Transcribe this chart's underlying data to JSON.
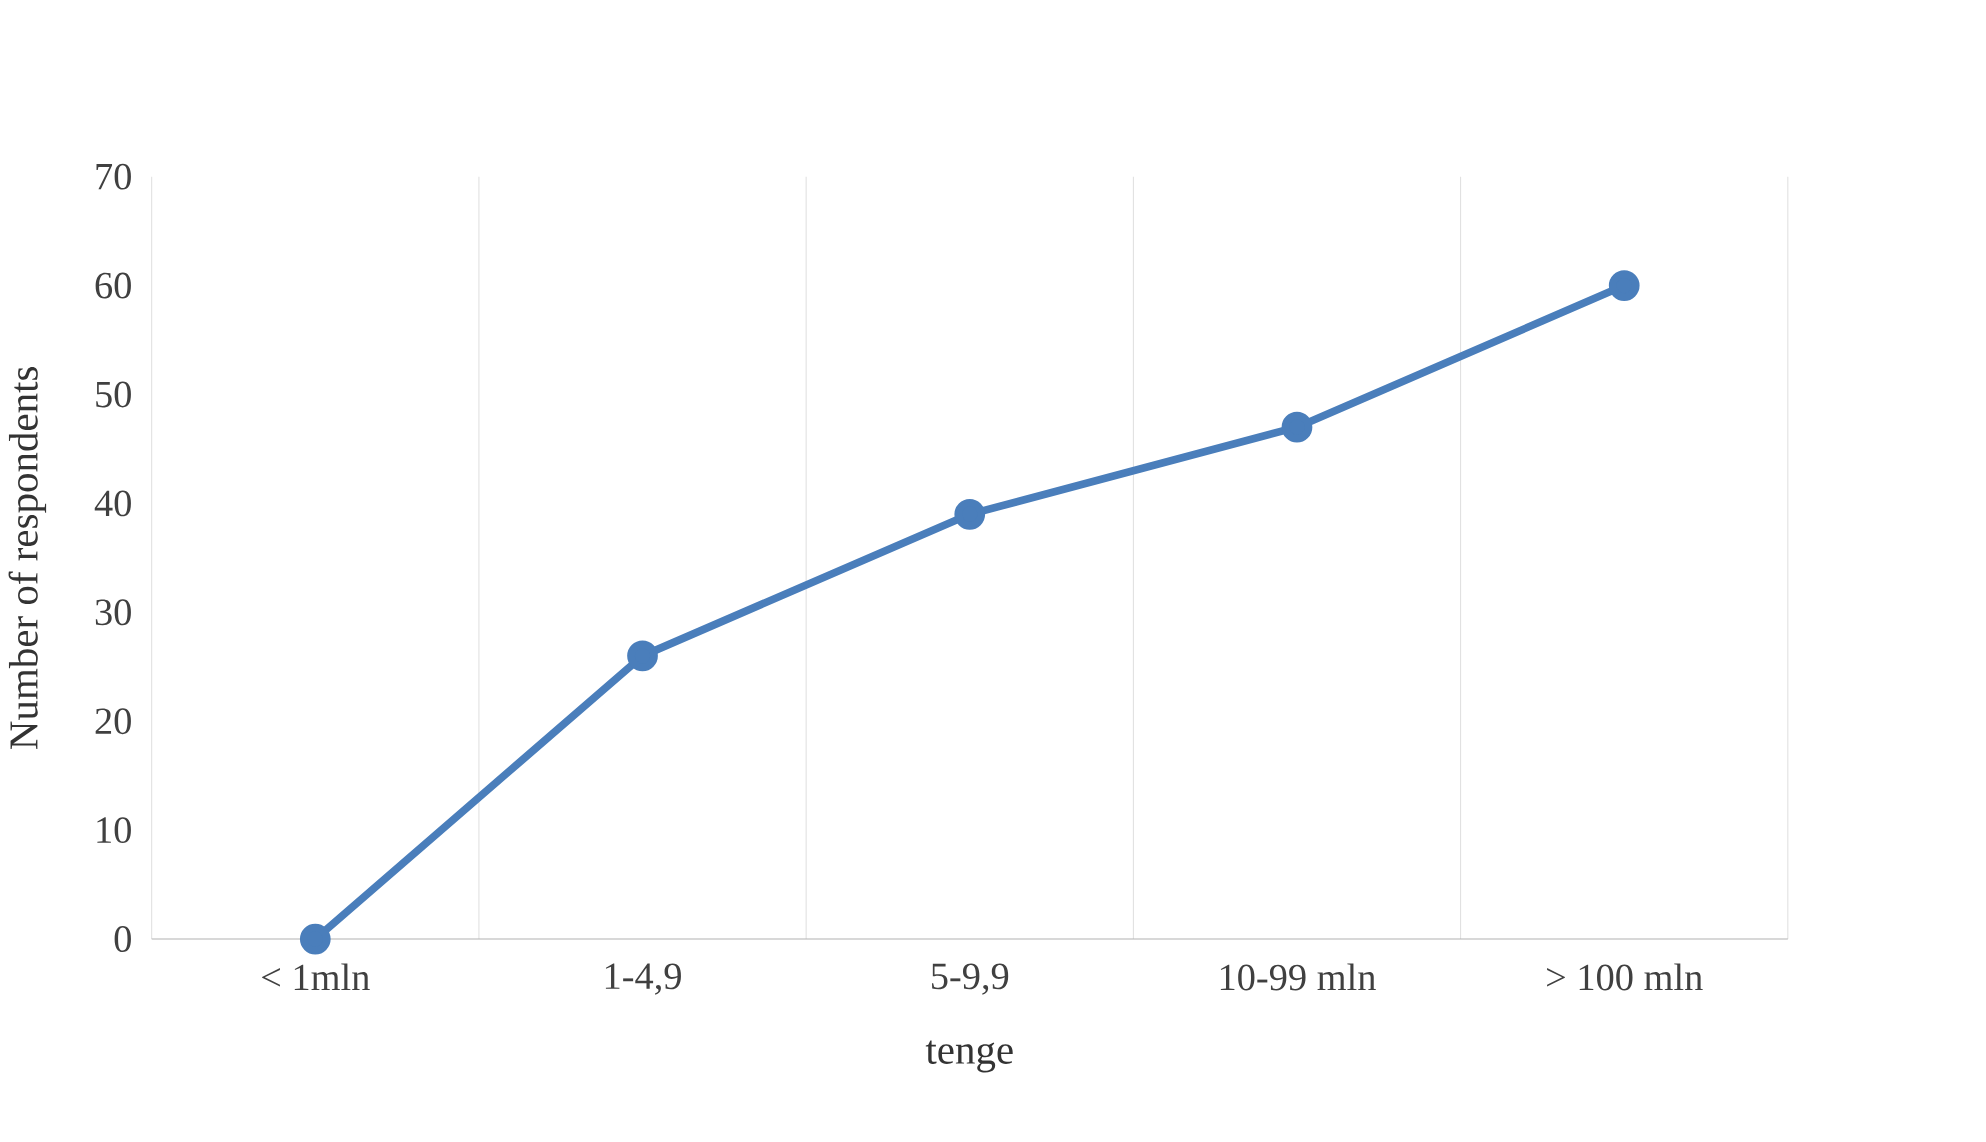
{
  "chart_data": {
    "type": "line",
    "xlabel": "tenge",
    "ylabel": "Number of respondents",
    "categories": [
      "< 1mln",
      "1-4,9",
      "5-9,9",
      "10-99 mln",
      "> 100 mln"
    ],
    "values": [
      0,
      26,
      39,
      47,
      60
    ],
    "color": "#4a7ebb",
    "ylim": [
      0,
      70
    ],
    "yticks": [
      0,
      10,
      20,
      30,
      40,
      50,
      60,
      70
    ],
    "grid": "x",
    "marker": "circle",
    "line_style": "solid"
  }
}
